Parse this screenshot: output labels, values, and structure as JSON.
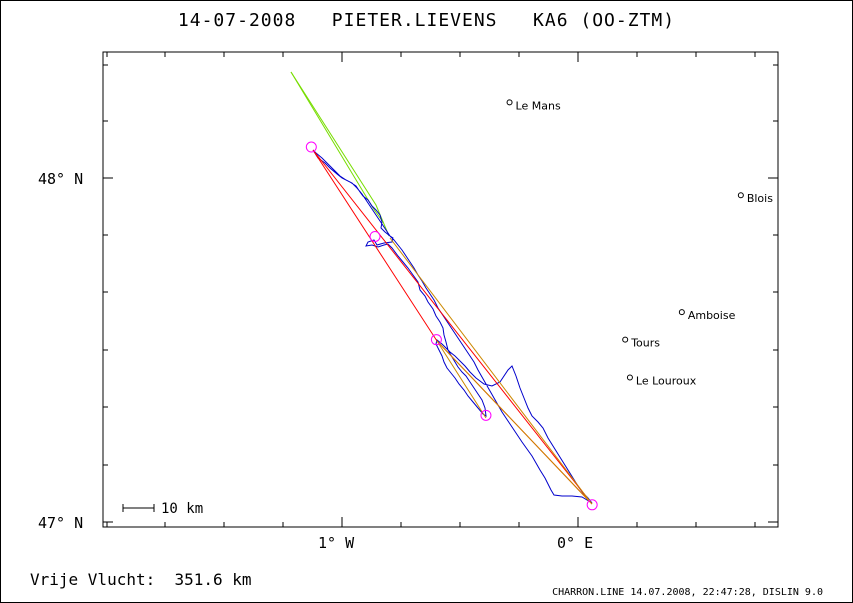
{
  "title": "14-07-2008   PIETER.LIEVENS   KA6 (OO-ZTM)",
  "axes": {
    "y_labels": [
      "48° N",
      "47° N"
    ],
    "x_labels": [
      "1° W",
      "0° E"
    ]
  },
  "scale_bar_label": "10 km",
  "towns": [
    {
      "name": "Le Mans",
      "lon": -0.29,
      "lat": 48.22
    },
    {
      "name": "Blois",
      "lon": 0.69,
      "lat": 47.95
    },
    {
      "name": "Amboise",
      "lon": 0.44,
      "lat": 47.61
    },
    {
      "name": "Tours",
      "lon": 0.2,
      "lat": 47.53
    },
    {
      "name": "Le Louroux",
      "lon": 0.22,
      "lat": 47.42
    }
  ],
  "turnpoints": [
    {
      "lon": -1.13,
      "lat": 48.09
    },
    {
      "lon": -0.86,
      "lat": 47.83
    },
    {
      "lon": -0.6,
      "lat": 47.53
    },
    {
      "lon": -0.39,
      "lat": 47.31
    },
    {
      "lon": 0.06,
      "lat": 47.05
    }
  ],
  "footer": {
    "distance_text": "Vrije Vlucht:  351.6 km",
    "program_text": "CHARRON.LINE 14.07.2008, 22:47:28, DISLIN 9.0"
  },
  "colors": {
    "track": "#0000cc",
    "task_line": "#ff0000",
    "leg_line": "#cc8800",
    "green_line": "#77dd00",
    "turnpoint": "#ff00ff"
  }
}
